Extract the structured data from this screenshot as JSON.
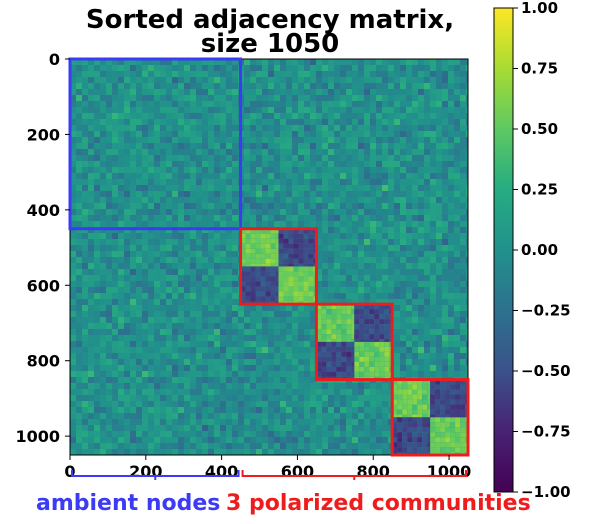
{
  "chart_data": {
    "type": "heatmap",
    "title": "Sorted adjacency matrix,",
    "subtitle": "size 1050",
    "matrix_size": 1050,
    "xlim": [
      0,
      1050
    ],
    "ylim": [
      1050,
      0
    ],
    "x_ticks": [
      "0",
      "200",
      "400",
      "600",
      "800",
      "1000"
    ],
    "x_tick_values": [
      0,
      200,
      400,
      600,
      800,
      1000
    ],
    "y_ticks": [
      "0",
      "200",
      "400",
      "600",
      "800",
      "1000"
    ],
    "y_tick_values": [
      0,
      200,
      400,
      600,
      800,
      1000
    ],
    "colormap": "viridis",
    "colorbar": {
      "range": [
        -1.0,
        1.0
      ],
      "ticks": [
        "1.00",
        "0.75",
        "0.50",
        "0.25",
        "0.00",
        "−0.25",
        "−0.50",
        "−0.75",
        "−1.00"
      ],
      "tick_values": [
        1.0,
        0.75,
        0.5,
        0.25,
        0.0,
        -0.25,
        -0.5,
        -0.75,
        -1.0
      ]
    },
    "blocks": [
      {
        "start": 0,
        "end": 450,
        "color": "#3b3bf5",
        "kind": "ambient"
      },
      {
        "start": 450,
        "end": 650,
        "color": "#ee1c1c",
        "kind": "community"
      },
      {
        "start": 650,
        "end": 850,
        "color": "#ee1c1c",
        "kind": "community"
      },
      {
        "start": 850,
        "end": 1050,
        "color": "#ee1c1c",
        "kind": "community"
      }
    ],
    "values": {
      "background_mean": 0.0,
      "noise_spread": 0.25,
      "community_within_half_mean": 0.55,
      "community_cross_half_mean": -0.55
    },
    "annotations": [
      {
        "text": "ambient nodes",
        "span": [
          0,
          450
        ],
        "color": "#3b3bf5"
      },
      {
        "text": "3 polarized communities",
        "span": [
          450,
          1050
        ],
        "color": "#ee1c1c"
      }
    ]
  }
}
